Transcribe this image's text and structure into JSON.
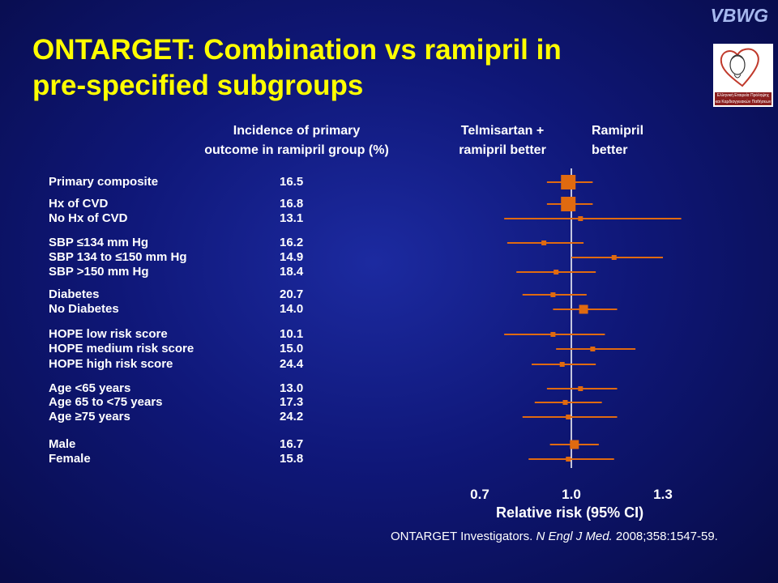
{
  "slide": {
    "title_line1": "ONTARGET: Combination vs ramipril in",
    "title_line2": "pre-specified subgroups",
    "brand": "VBWG",
    "logo_caption": "Ελληνική Εταιρεία Πρόληψης και Καρδιαγγειακών Παθήσεων"
  },
  "colors": {
    "marker": "#e06a10",
    "title": "#ffff00",
    "text": "#ffffff"
  },
  "chart_data": {
    "type": "forest",
    "headers": {
      "incidence": [
        "Incidence of primary",
        "outcome in ramipril group (%)"
      ],
      "left_favor": [
        "Telmisartan +",
        "ramipril better"
      ],
      "right_favor": [
        "Ramipril",
        "better"
      ]
    },
    "x_axis": {
      "label": "Relative risk (95% CI)",
      "ticks": [
        0.7,
        1.0,
        1.3
      ],
      "tick_labels": [
        "0.7",
        "1.0",
        "1.3"
      ],
      "range": [
        0.7,
        1.3
      ],
      "reference_line": 1.0
    },
    "rows": [
      {
        "label": "Primary composite",
        "incidence": "16.5",
        "rr": 0.99,
        "lo": 0.92,
        "hi": 1.07,
        "size": "large"
      },
      {
        "label": "Hx of CVD",
        "incidence": "16.8",
        "rr": 0.99,
        "lo": 0.92,
        "hi": 1.07,
        "size": "large"
      },
      {
        "label": "No Hx of CVD",
        "incidence": "13.1",
        "rr": 1.03,
        "lo": 0.78,
        "hi": 1.36,
        "size": "small"
      },
      {
        "label": "SBP ≤134 mm Hg",
        "incidence": "16.2",
        "rr": 0.91,
        "lo": 0.79,
        "hi": 1.04,
        "size": "small"
      },
      {
        "label": "SBP 134 to ≤150 mm Hg",
        "incidence": "14.9",
        "rr": 1.14,
        "lo": 1.0,
        "hi": 1.3,
        "size": "small"
      },
      {
        "label": "SBP >150 mm Hg",
        "incidence": "18.4",
        "rr": 0.95,
        "lo": 0.82,
        "hi": 1.08,
        "size": "small"
      },
      {
        "label": "Diabetes",
        "incidence": "20.7",
        "rr": 0.94,
        "lo": 0.84,
        "hi": 1.05,
        "size": "small"
      },
      {
        "label": "No Diabetes",
        "incidence": "14.0",
        "rr": 1.04,
        "lo": 0.94,
        "hi": 1.15,
        "size": "medium"
      },
      {
        "label": "HOPE low risk score",
        "incidence": "10.1",
        "rr": 0.94,
        "lo": 0.78,
        "hi": 1.11,
        "size": "small"
      },
      {
        "label": "HOPE medium risk score",
        "incidence": "15.0",
        "rr": 1.07,
        "lo": 0.95,
        "hi": 1.21,
        "size": "small"
      },
      {
        "label": "HOPE high risk score",
        "incidence": "24.4",
        "rr": 0.97,
        "lo": 0.87,
        "hi": 1.08,
        "size": "small"
      },
      {
        "label": "Age <65 years",
        "incidence": "13.0",
        "rr": 1.03,
        "lo": 0.92,
        "hi": 1.15,
        "size": "small"
      },
      {
        "label": "Age 65 to <75 years",
        "incidence": "17.3",
        "rr": 0.98,
        "lo": 0.88,
        "hi": 1.1,
        "size": "small"
      },
      {
        "label": "Age ≥75 years",
        "incidence": "24.2",
        "rr": 0.99,
        "lo": 0.84,
        "hi": 1.15,
        "size": "small"
      },
      {
        "label": "Male",
        "incidence": "16.7",
        "rr": 1.01,
        "lo": 0.93,
        "hi": 1.09,
        "size": "medium"
      },
      {
        "label": "Female",
        "incidence": "15.8",
        "rr": 0.99,
        "lo": 0.86,
        "hi": 1.14,
        "size": "small"
      }
    ]
  },
  "citation": {
    "prefix": "ONTARGET Investigators. ",
    "journal": "N Engl J Med.",
    "suffix": " 2008;358:1547-59."
  }
}
